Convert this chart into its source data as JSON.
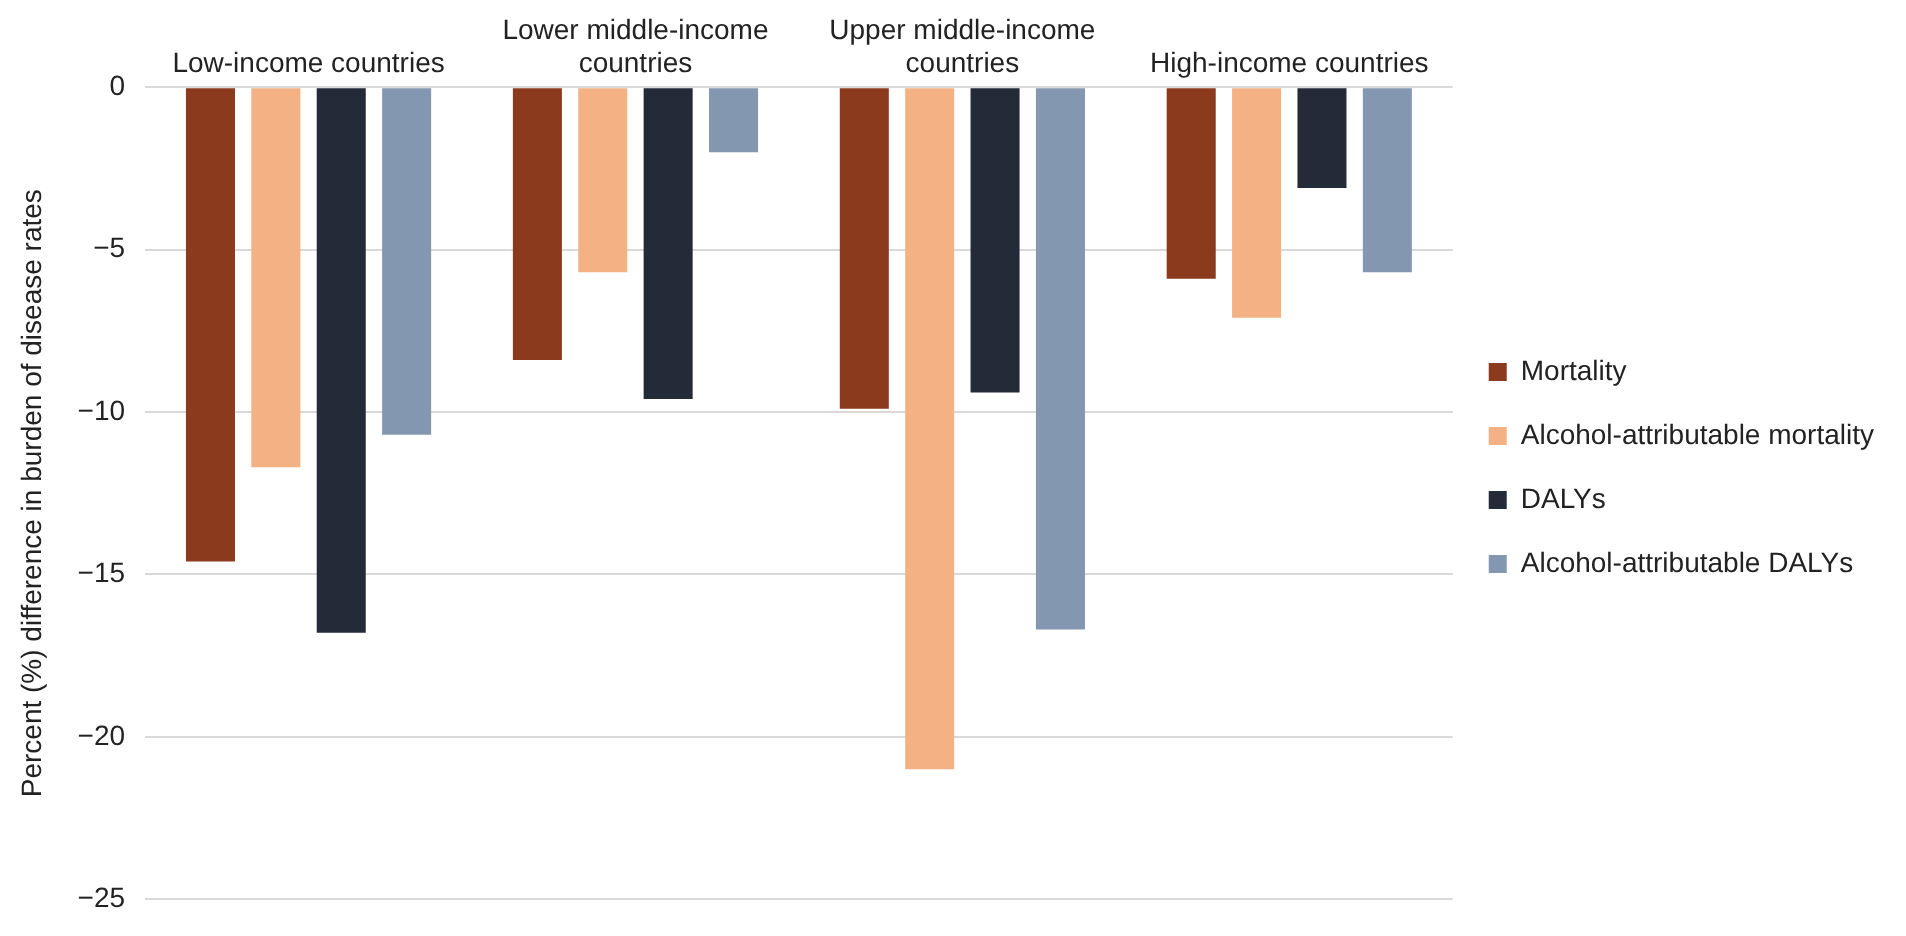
{
  "chart_data": {
    "type": "bar",
    "ylabel": "Percent (%) difference in burden of disease rates",
    "categories": [
      "Low-income countries",
      "Lower middle-income countries",
      "Upper middle-income countries",
      "High-income countries"
    ],
    "series": [
      {
        "name": "Mortality",
        "color": "#8b3a1e",
        "values": [
          -14.6,
          -8.4,
          -9.9,
          -5.9
        ]
      },
      {
        "name": "Alcohol-attributable mortality",
        "color": "#f4b183",
        "values": [
          -11.7,
          -5.7,
          -21.0,
          -7.1
        ]
      },
      {
        "name": "DALYs",
        "color": "#232a38",
        "values": [
          -16.8,
          -9.6,
          -9.4,
          -3.1
        ]
      },
      {
        "name": "Alcohol-attributable DALYs",
        "color": "#8497b0",
        "values": [
          -10.7,
          -2.0,
          -16.7,
          -5.7
        ]
      }
    ],
    "ylim": [
      -25,
      0
    ],
    "yticks": [
      {
        "value": -25,
        "label": "−25"
      },
      {
        "value": -20,
        "label": "−20"
      },
      {
        "value": -15,
        "label": "−15"
      },
      {
        "value": -10,
        "label": "−10"
      },
      {
        "value": -5,
        "label": "−5"
      },
      0
    ],
    "grid": "y",
    "legend": "right"
  }
}
